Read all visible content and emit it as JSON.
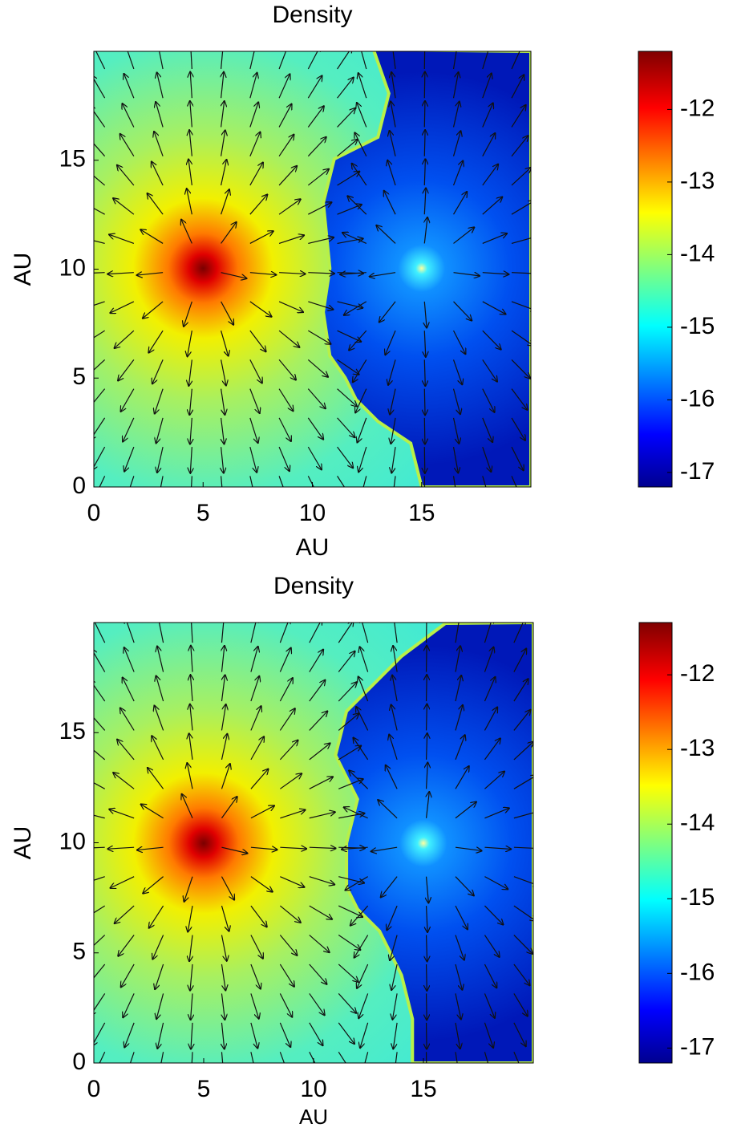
{
  "chart_data": [
    {
      "type": "heatmap",
      "title": "Density",
      "xlabel": "AU",
      "ylabel": "AU",
      "xlim": [
        0,
        20
      ],
      "ylim": [
        0,
        20
      ],
      "xticks": [
        0,
        5,
        10,
        15
      ],
      "yticks": [
        0,
        5,
        10,
        15
      ],
      "colorbar": {
        "lim": [
          -17.2,
          -11.2
        ],
        "ticks": [
          -12,
          -13,
          -14,
          -15,
          -16,
          -17
        ]
      }
    },
    {
      "type": "heatmap",
      "title": "Density",
      "xlabel": "AU",
      "ylabel": "AU",
      "xlim": [
        0,
        20
      ],
      "ylim": [
        0,
        20
      ],
      "xticks": [
        0,
        5,
        10,
        15
      ],
      "yticks": [
        0,
        5,
        10,
        15
      ],
      "colorbar": {
        "lim": [
          -17.2,
          -11.3
        ],
        "ticks": [
          -12,
          -13,
          -14,
          -15,
          -16,
          -17
        ]
      }
    }
  ]
}
